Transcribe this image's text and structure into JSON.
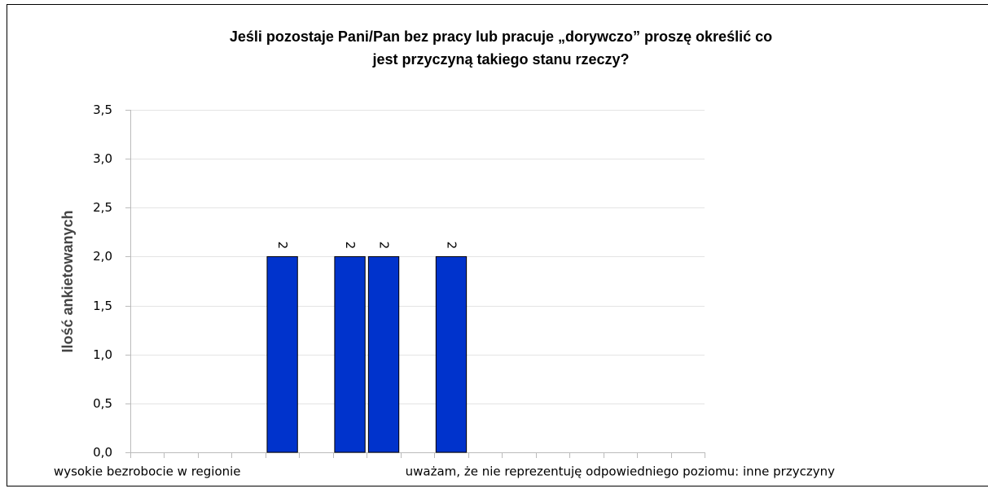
{
  "chart_data": {
    "type": "bar",
    "title": [
      "Jeśli pozostaje Pani/Pan bez pracy lub pracuje „dorywczo” proszę określić co",
      "jest przyczyną takiego stanu rzeczy?"
    ],
    "y_label": "Ilość ankietowanych",
    "categories": [
      "wysokie bezrobocie w regionie",
      null,
      null,
      null,
      null,
      null,
      null,
      null,
      null,
      null,
      null,
      null,
      null,
      null,
      "uważam, że nie reprezentuję odpowiedniego poziomu: inne przyczyny",
      null,
      null
    ],
    "values": [
      null,
      null,
      null,
      null,
      2,
      null,
      2,
      2,
      null,
      2,
      null,
      null,
      null,
      null,
      null,
      null,
      null
    ],
    "color": "#0033cc",
    "ylim": [
      0,
      3.5
    ],
    "yticks": [
      {
        "value": 0,
        "label": "0,0"
      },
      {
        "value": 0.5,
        "label": "0,5"
      },
      {
        "value": 1,
        "label": "1,0"
      },
      {
        "value": 1.5,
        "label": "1,5"
      },
      {
        "value": 2,
        "label": "2,0"
      },
      {
        "value": 2.5,
        "label": "2,5"
      },
      {
        "value": 3,
        "label": "3,0"
      },
      {
        "value": 3.5,
        "label": "3,5"
      }
    ],
    "grid": true
  }
}
